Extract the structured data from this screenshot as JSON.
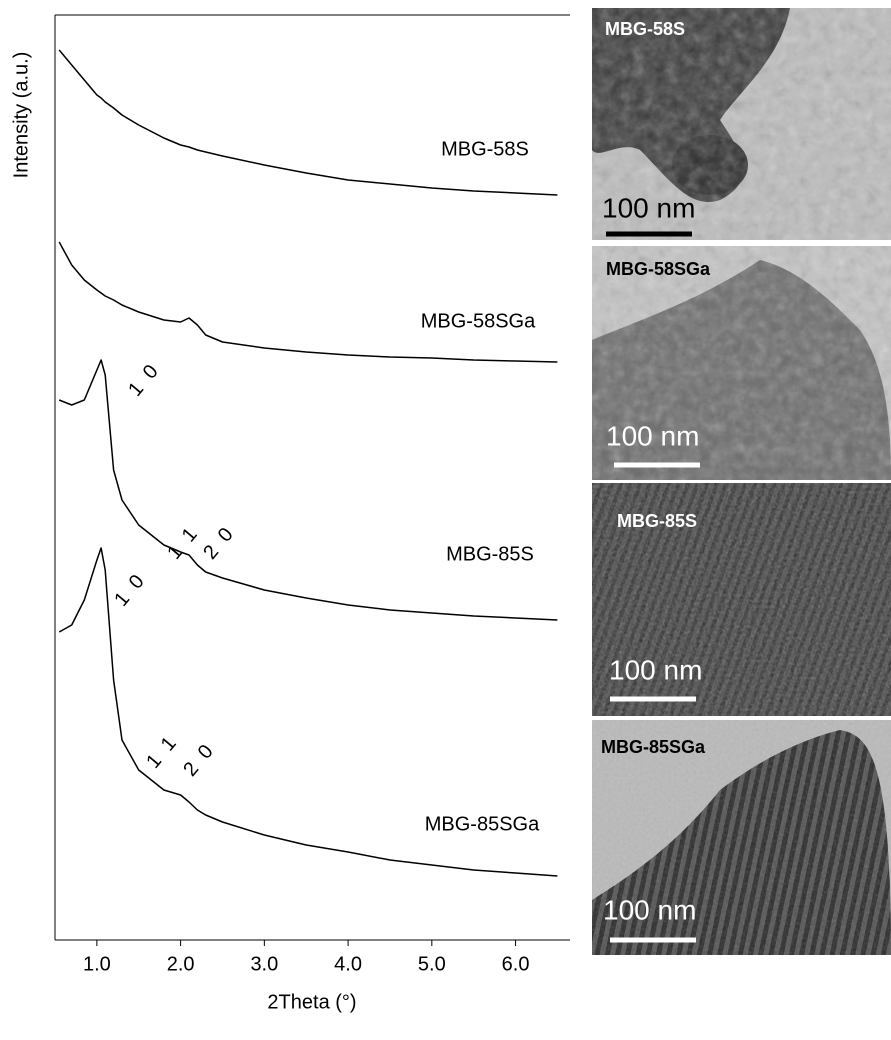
{
  "chart_data": {
    "type": "line",
    "xlabel": "2Theta (°)",
    "ylabel": "Intensity (a.u.)",
    "x": [
      0.55,
      0.7,
      0.85,
      1.0,
      1.05,
      1.1,
      1.2,
      1.3,
      1.5,
      1.8,
      2.0,
      2.1,
      2.2,
      2.3,
      2.5,
      3.0,
      3.5,
      4.0,
      4.5,
      5.0,
      5.5,
      6.0,
      6.5
    ],
    "xlim": [
      0.5,
      6.65
    ],
    "xticks": [
      {
        "value": 1,
        "label": "1.0"
      },
      {
        "value": 2,
        "label": "2.0"
      },
      {
        "value": 3,
        "label": "3.0"
      },
      {
        "value": 4,
        "label": "4.0"
      },
      {
        "value": 5,
        "label": "5.0"
      },
      {
        "value": 6,
        "label": "6.0"
      }
    ],
    "ylim": [
      0,
      925
    ],
    "series": [
      {
        "name": "MBG-58S",
        "color": "#000000",
        "values": [
          890,
          875,
          860,
          845,
          842,
          838,
          832,
          825,
          815,
          802,
          795,
          793,
          790,
          788,
          784,
          775,
          767,
          760,
          756,
          752,
          749,
          747,
          745
        ]
      },
      {
        "name": "MBG-58SGa",
        "color": "#000000",
        "values": [
          698,
          675,
          660,
          650,
          647,
          644,
          640,
          635,
          628,
          620,
          618,
          622,
          615,
          605,
          598,
          592,
          588,
          585,
          583,
          582,
          580,
          579,
          578
        ]
      },
      {
        "name": "MBG-85S",
        "color": "#000000",
        "values": [
          540,
          535,
          540,
          570,
          580,
          565,
          470,
          440,
          415,
          395,
          388,
          385,
          375,
          368,
          362,
          350,
          342,
          335,
          330,
          327,
          324,
          322,
          320
        ]
      },
      {
        "name": "MBG-85SGa",
        "color": "#000000",
        "values": [
          308,
          315,
          340,
          380,
          392,
          370,
          260,
          200,
          170,
          150,
          145,
          138,
          130,
          125,
          118,
          105,
          95,
          88,
          80,
          75,
          70,
          67,
          64
        ]
      }
    ],
    "annotations": [
      "1 0",
      "1 1",
      "2 0",
      "1 0",
      "1 1",
      "2 0"
    ]
  },
  "images": [
    {
      "label": "MBG-58S",
      "scale": "100 nm"
    },
    {
      "label": "MBG-58SGa",
      "scale": "100 nm"
    },
    {
      "label": "MBG-85S",
      "scale": "100 nm"
    },
    {
      "label": "MBG-85SGa",
      "scale": "100 nm"
    }
  ]
}
